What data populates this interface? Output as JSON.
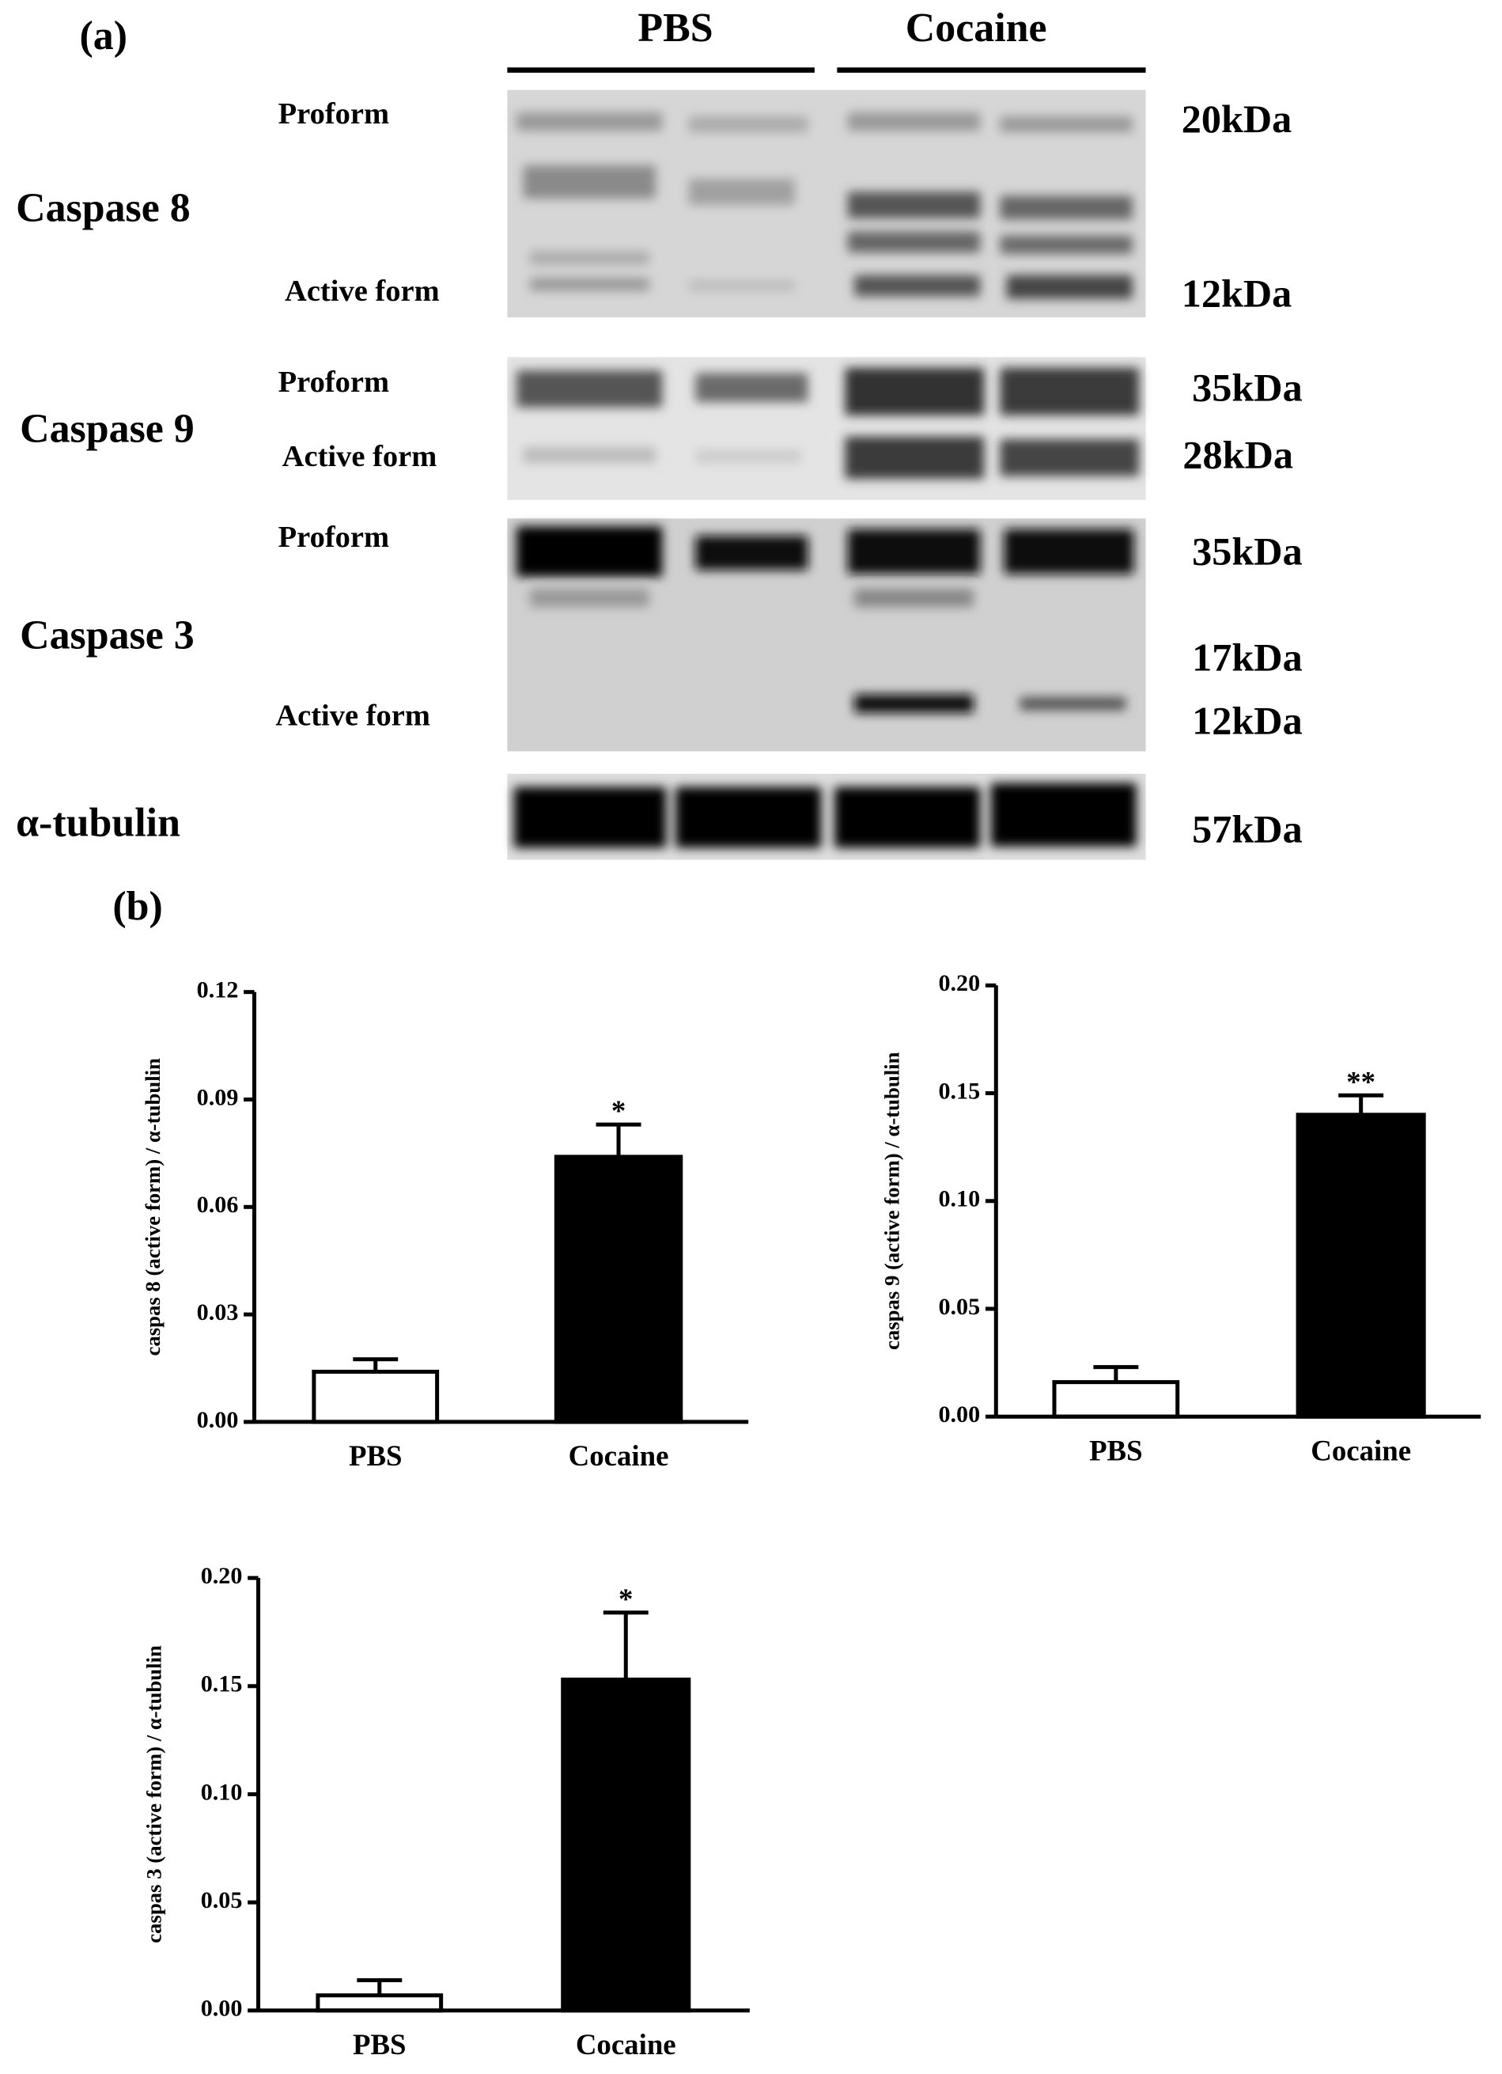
{
  "panel_a": {
    "label": "(a)",
    "groups": [
      "PBS",
      "Cocaine"
    ],
    "rows": [
      {
        "name": "Caspase 8",
        "forms": [
          "Proform",
          "Active form"
        ],
        "sizes": [
          "20kDa",
          "12kDa"
        ]
      },
      {
        "name": "Caspase 9",
        "forms": [
          "Proform",
          "Active form"
        ],
        "sizes": [
          "35kDa",
          "28kDa"
        ]
      },
      {
        "name": "Caspase 3",
        "forms": [
          "Proform",
          "Active form"
        ],
        "sizes": [
          "35kDa",
          "17kDa",
          "12kDa"
        ]
      },
      {
        "name": "α-tubulin",
        "sizes": [
          "57kDa"
        ]
      }
    ]
  },
  "panel_b": {
    "label": "(b)"
  },
  "chart_data": [
    {
      "type": "bar",
      "ylabel": "caspas 8 (active form) / α-tubulin",
      "categories": [
        "PBS",
        "Cocaine"
      ],
      "values": [
        0.014,
        0.074
      ],
      "errors": [
        0.0035,
        0.009
      ],
      "colors": [
        "#ffffff",
        "#000000"
      ],
      "annotation": "*",
      "ylim": [
        0,
        0.12
      ],
      "yticks": [
        {
          "value": 0,
          "label": "0.00"
        },
        0.03,
        0.06,
        0.09,
        0.12
      ]
    },
    {
      "type": "bar",
      "ylabel": "caspas 9 (active form) / α-tubulin",
      "categories": [
        "PBS",
        "Cocaine"
      ],
      "values": [
        0.016,
        0.14
      ],
      "errors": [
        0.007,
        0.009
      ],
      "colors": [
        "#ffffff",
        "#000000"
      ],
      "annotation": "**",
      "ylim": [
        0,
        0.2
      ],
      "yticks": [
        {
          "value": 0,
          "label": "0.00"
        },
        0.05,
        {
          "value": 0.1,
          "label": "0.10"
        },
        0.15,
        {
          "value": 0.2,
          "label": "0.20"
        }
      ]
    },
    {
      "type": "bar",
      "ylabel": "caspas 3 (active form) / α-tubulin",
      "categories": [
        "PBS",
        "Cocaine"
      ],
      "values": [
        0.007,
        0.153
      ],
      "errors": [
        0.007,
        0.031
      ],
      "colors": [
        "#ffffff",
        "#000000"
      ],
      "annotation": "*",
      "ylim": [
        0,
        0.2
      ],
      "yticks": [
        {
          "value": 0,
          "label": "0.00"
        },
        0.05,
        {
          "value": 0.1,
          "label": "0.10"
        },
        0.15,
        {
          "value": 0.2,
          "label": "0.20"
        }
      ]
    }
  ]
}
